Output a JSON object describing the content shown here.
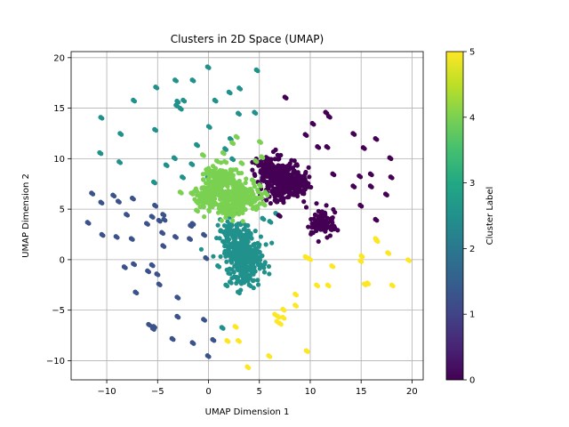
{
  "chart_data": {
    "type": "scatter",
    "title": "Clusters in 2D Space (UMAP)",
    "xlabel": "UMAP Dimension 1",
    "ylabel": "UMAP Dimension 2",
    "xlim": [
      -13.5,
      21.1
    ],
    "ylim": [
      -11.9,
      20.6
    ],
    "xticks": [
      -10,
      -5,
      0,
      5,
      10,
      15,
      20
    ],
    "yticks": [
      -10,
      -5,
      0,
      5,
      10,
      15,
      20
    ],
    "grid": true,
    "colormap": "viridis",
    "colorbar": {
      "label": "Cluster Label",
      "range": [
        0,
        5
      ],
      "ticks": [
        0,
        1,
        2,
        3,
        4,
        5
      ]
    },
    "clusters": [
      {
        "label": 0,
        "color": "#440154",
        "centers": [
          [
            6.4,
            8.3
          ],
          [
            7.8,
            8.5
          ],
          [
            6.9,
            7.1
          ],
          [
            8.2,
            7.5
          ],
          [
            6.0,
            9.0
          ],
          [
            11.1,
            3.6
          ]
        ],
        "points": [
          [
            7.5,
            16.1
          ],
          [
            11.5,
            14.6
          ],
          [
            11.8,
            14.2
          ],
          [
            10.2,
            13.5
          ],
          [
            9.5,
            12.4
          ],
          [
            10.7,
            11.2
          ],
          [
            14.2,
            12.5
          ],
          [
            16.4,
            12.0
          ],
          [
            11.6,
            11.2
          ],
          [
            12.2,
            8.5
          ],
          [
            9.7,
            7.3
          ],
          [
            14.2,
            7.3
          ],
          [
            14.8,
            8.3
          ],
          [
            15.9,
            8.5
          ],
          [
            15.9,
            7.3
          ],
          [
            17.9,
            8.2
          ],
          [
            17.8,
            10.1
          ],
          [
            17.4,
            6.5
          ],
          [
            14.9,
            5.4
          ],
          [
            16.4,
            4.0
          ],
          [
            6.9,
            4.4
          ],
          [
            15.2,
            11.1
          ]
        ]
      },
      {
        "label": 1,
        "color": "#3b528b",
        "centers": [],
        "points": [
          [
            -11.5,
            6.6
          ],
          [
            -9.4,
            6.4
          ],
          [
            -10.6,
            5.7
          ],
          [
            -8.9,
            5.8
          ],
          [
            -7.5,
            6.1
          ],
          [
            -5.3,
            5.4
          ],
          [
            -5.6,
            4.3
          ],
          [
            -4.5,
            4.5
          ],
          [
            -6.1,
            3.6
          ],
          [
            -4.9,
            3.9
          ],
          [
            -4.4,
            4.0
          ],
          [
            -11.9,
            3.7
          ],
          [
            -10.5,
            2.5
          ],
          [
            -9.1,
            2.3
          ],
          [
            -8.1,
            4.5
          ],
          [
            -7.6,
            2.1
          ],
          [
            -4.6,
            2.7
          ],
          [
            -4.5,
            1.4
          ],
          [
            -3.3,
            2.3
          ],
          [
            -8.3,
            -0.7
          ],
          [
            -7.4,
            -0.4
          ],
          [
            -6.0,
            -1.1
          ],
          [
            -5.6,
            -0.5
          ],
          [
            -5.1,
            -1.4
          ],
          [
            -4.9,
            -2.4
          ],
          [
            -7.2,
            -3.2
          ],
          [
            -3.1,
            -3.7
          ],
          [
            -3.1,
            -5.6
          ],
          [
            -5.9,
            -6.4
          ],
          [
            -5.4,
            -6.6
          ],
          [
            -5.5,
            -6.8
          ],
          [
            -3.6,
            -7.8
          ],
          [
            -1.6,
            -8.2
          ],
          [
            -0.5,
            -5.9
          ],
          [
            0.4,
            -7.9
          ],
          [
            -0.1,
            -9.5
          ],
          [
            -0.5,
            2.5
          ],
          [
            -0.3,
            0.2
          ],
          [
            -1.9,
            2.1
          ],
          [
            -1.6,
            3.6
          ],
          [
            -1.8,
            3.4
          ]
        ]
      },
      {
        "label": 2,
        "color": "#21918c",
        "centers": [
          [
            3.3,
            1.4
          ],
          [
            4.2,
            0.3
          ],
          [
            2.5,
            2.6
          ],
          [
            3.6,
            -1.3
          ],
          [
            2.9,
            0.3
          ]
        ],
        "points": [
          [
            -0.1,
            19.1
          ],
          [
            -3.3,
            17.8
          ],
          [
            -1.6,
            17.8
          ],
          [
            -5.2,
            17.1
          ],
          [
            -7.4,
            15.8
          ],
          [
            -3.1,
            15.7
          ],
          [
            -2.5,
            15.8
          ],
          [
            -2.8,
            15.0
          ],
          [
            -3.2,
            15.3
          ],
          [
            -10.6,
            14.1
          ],
          [
            -8.7,
            12.5
          ],
          [
            -5.3,
            12.9
          ],
          [
            -10.7,
            10.6
          ],
          [
            -8.8,
            9.7
          ],
          [
            -3.4,
            10.1
          ],
          [
            -4.2,
            9.4
          ],
          [
            -1.7,
            9.5
          ],
          [
            -5.4,
            7.7
          ],
          [
            -2.6,
            8.2
          ],
          [
            -1.2,
            11.4
          ],
          [
            -0.1,
            8.2
          ],
          [
            2.3,
            10.0
          ],
          [
            2.0,
            16.6
          ],
          [
            3.0,
            17.0
          ],
          [
            4.7,
            18.8
          ],
          [
            0.6,
            15.8
          ],
          [
            2.9,
            14.5
          ],
          [
            4.5,
            14.6
          ],
          [
            0.0,
            13.2
          ],
          [
            1.6,
            11.0
          ],
          [
            2.1,
            12.0
          ],
          [
            5.3,
            4.1
          ],
          [
            6.0,
            3.8
          ],
          [
            6.6,
            4.6
          ],
          [
            1.2,
            2.9
          ],
          [
            0.9,
            -0.6
          ],
          [
            1.7,
            -2.5
          ],
          [
            2.1,
            -2.2
          ],
          [
            2.9,
            -3.2
          ],
          [
            4.0,
            -2.5
          ],
          [
            1.3,
            -6.7
          ],
          [
            4.9,
            -0.5
          ],
          [
            5.3,
            -0.7
          ]
        ]
      },
      {
        "label": 4,
        "color": "#7ad151",
        "centers": [
          [
            0.8,
            7.5
          ],
          [
            2.5,
            6.5
          ],
          [
            1.5,
            8.2
          ],
          [
            3.8,
            6.3
          ],
          [
            2.0,
            5.2
          ],
          [
            0.2,
            6.2
          ]
        ],
        "points": [
          [
            -1.7,
            6.6
          ],
          [
            -2.8,
            6.7
          ],
          [
            -1.2,
            4.9
          ],
          [
            -0.6,
            5.7
          ],
          [
            5.0,
            7.4
          ],
          [
            5.6,
            6.6
          ],
          [
            5.4,
            5.5
          ],
          [
            5.0,
            11.7
          ],
          [
            5.2,
            10.2
          ],
          [
            4.6,
            9.8
          ],
          [
            3.2,
            9.6
          ],
          [
            2.7,
            12.2
          ],
          [
            2.3,
            11.6
          ],
          [
            -0.6,
            10.4
          ],
          [
            1.4,
            10.6
          ],
          [
            0.8,
            9.8
          ],
          [
            3.1,
            4.8
          ],
          [
            4.3,
            7.9
          ]
        ]
      },
      {
        "label": 5,
        "color": "#fde725",
        "centers": [],
        "points": [
          [
            9.5,
            0.3
          ],
          [
            9.9,
            0.1
          ],
          [
            9.7,
            0.2
          ],
          [
            12.1,
            -0.6
          ],
          [
            15.0,
            0.4
          ],
          [
            14.9,
            -0.1
          ],
          [
            16.5,
            1.9
          ],
          [
            16.4,
            2.1
          ],
          [
            17.6,
            0.7
          ],
          [
            19.6,
            0.0
          ],
          [
            11.7,
            -2.5
          ],
          [
            15.3,
            -2.4
          ],
          [
            15.6,
            -2.3
          ],
          [
            18.0,
            -2.5
          ],
          [
            10.6,
            -2.5
          ],
          [
            8.5,
            -3.4
          ],
          [
            8.5,
            -4.5
          ],
          [
            7.3,
            -4.9
          ],
          [
            6.5,
            -5.4
          ],
          [
            6.7,
            -6.1
          ],
          [
            7.0,
            -6.3
          ],
          [
            6.8,
            -5.6
          ],
          [
            7.3,
            -5.7
          ],
          [
            9.6,
            -9.0
          ],
          [
            5.9,
            -9.5
          ],
          [
            2.9,
            -8.0
          ],
          [
            1.8,
            -8.0
          ],
          [
            2.6,
            -6.6
          ],
          [
            3.8,
            -10.6
          ]
        ]
      }
    ]
  }
}
